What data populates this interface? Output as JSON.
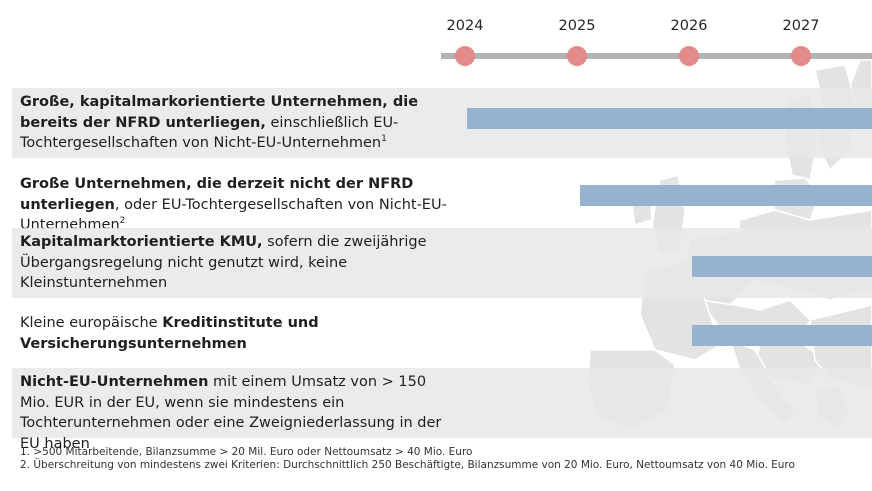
{
  "timeline": {
    "years": [
      "2024",
      "2025",
      "2026",
      "2027"
    ],
    "line_color": "#b3b3b3",
    "dot_color": "#e38b8b"
  },
  "rows": [
    {
      "bold1": "Große, kapitalmarkorientierte Unternehmen, die bereits der NFRD unterliegen,",
      "normal1": " einschließlich EU-Tochtergesellschaften von Nicht-EU-Unternehmen",
      "sup": "1",
      "start_year": "2024"
    },
    {
      "bold1": "Große Unternehmen, die derzeit nicht der NFRD unterliegen",
      "normal1": ", oder EU-Tochtergesellschaften von Nicht-EU-Unternehmen",
      "sup": "2",
      "start_year": "2025"
    },
    {
      "bold1": "Kapitalmarktorientierte KMU,",
      "normal1": " sofern die zweijährige Übergangsregelung nicht genutzt wird, keine Kleinstunternehmen",
      "start_year": "2026"
    },
    {
      "normal0": "Kleine europäische ",
      "bold1": "Kreditinstitute und Versicherungsunternehmen",
      "start_year": "2026"
    },
    {
      "bold1": "Nicht-EU-Unternehmen",
      "normal1": " mit einem Umsatz von > 150 Mio. EUR in der EU, wenn sie mindestens ein Tochterunternehmen oder eine Zweigniederlassung in der EU haben"
    }
  ],
  "bar_color": "#95b3d1",
  "footnotes": [
    "1. >500 Mitarbeitende, Bilanzsumme > 20 Mil. Euro oder Nettoumsatz > 40 Mio. Euro",
    "2. Überschreitung von mindestens zwei Kriterien: Durchschnittlich 250 Beschäftigte, Bilanzsumme von 20 Mio. Euro, Nettoumsatz von 40 Mio. Euro"
  ]
}
